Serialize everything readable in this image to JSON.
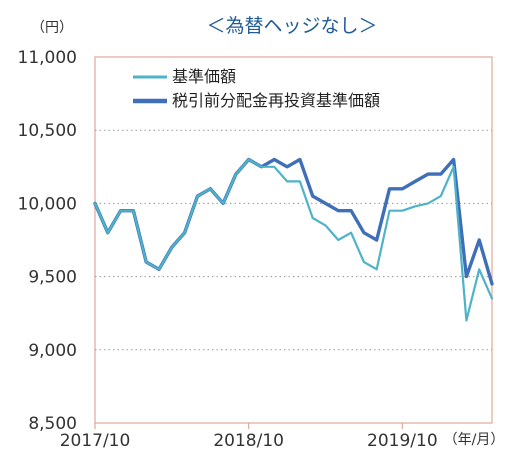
{
  "chart_data": {
    "type": "line",
    "title": "＜為替ヘッジなし＞",
    "y_unit_label": "（円）",
    "x_unit_label": "（年/月）",
    "ylim": [
      8500,
      11000
    ],
    "y_ticks": [
      {
        "value": 8500,
        "label": "8,500"
      },
      {
        "value": 9000,
        "label": "9,000"
      },
      {
        "value": 9500,
        "label": "9,500"
      },
      {
        "value": 10000,
        "label": "10,000"
      },
      {
        "value": 10500,
        "label": "10,500"
      },
      {
        "value": 11000,
        "label": "11,000"
      }
    ],
    "x_ticks": [
      {
        "value": "2017-10",
        "label": "2017/10"
      },
      {
        "value": "2018-10",
        "label": "2018/10"
      },
      {
        "value": "2019-10",
        "label": "2019/10"
      }
    ],
    "x_range": [
      "2017-10",
      "2020-05"
    ],
    "grid": "dotted-horizontal",
    "legend_position": "top-left",
    "x": [
      "2017-10",
      "2017-11",
      "2017-12",
      "2018-01",
      "2018-02",
      "2018-03",
      "2018-04",
      "2018-05",
      "2018-06",
      "2018-07",
      "2018-08",
      "2018-09",
      "2018-10",
      "2018-11",
      "2018-12",
      "2019-01",
      "2019-02",
      "2019-03",
      "2019-04",
      "2019-05",
      "2019-06",
      "2019-07",
      "2019-08",
      "2019-09",
      "2019-10",
      "2019-11",
      "2019-12",
      "2020-01",
      "2020-02",
      "2020-03",
      "2020-04",
      "2020-05"
    ],
    "series": [
      {
        "name": "基準価額",
        "color": "#4fb3c8",
        "values": [
          10000,
          9800,
          9950,
          9950,
          9600,
          9550,
          9700,
          9800,
          10050,
          10100,
          10000,
          10200,
          10300,
          10250,
          10250,
          10150,
          10150,
          9900,
          9850,
          9750,
          9800,
          9600,
          9550,
          9950,
          9950,
          9980,
          10000,
          10050,
          10250,
          9200,
          9550,
          9350
        ]
      },
      {
        "name": "税引前分配金再投資基準価額",
        "color": "#3f6fb8",
        "values": [
          10000,
          9800,
          9950,
          9950,
          9600,
          9550,
          9700,
          9800,
          10050,
          10100,
          10000,
          10200,
          10300,
          10250,
          10300,
          10250,
          10300,
          10050,
          10000,
          9950,
          9950,
          9800,
          9750,
          10100,
          10100,
          10150,
          10200,
          10200,
          10300,
          9500,
          9750,
          9450
        ]
      }
    ]
  }
}
